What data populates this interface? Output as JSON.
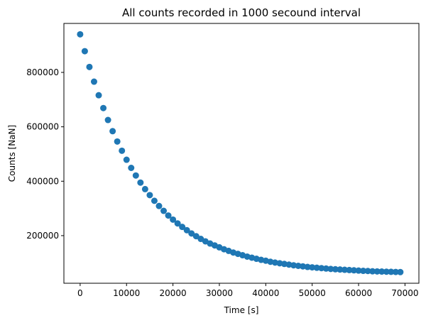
{
  "chart_data": {
    "type": "scatter",
    "title": "All counts recorded in 1000 secound interval",
    "xlabel": "Time [s]",
    "ylabel": "Counts [NaN]",
    "xlim": [
      -3500,
      73000
    ],
    "ylim": [
      25000,
      980000
    ],
    "xticks": [
      0,
      10000,
      20000,
      30000,
      40000,
      50000,
      60000,
      70000
    ],
    "xtick_labels": [
      "0",
      "10000",
      "20000",
      "30000",
      "40000",
      "50000",
      "60000",
      "70000"
    ],
    "yticks": [
      200000,
      400000,
      600000,
      800000
    ],
    "ytick_labels": [
      "200000",
      "400000",
      "600000",
      "800000"
    ],
    "grid": false,
    "legend": "none",
    "marker_color": "#1f77b4",
    "x": [
      0,
      1000,
      2000,
      3000,
      4000,
      5000,
      6000,
      7000,
      8000,
      9000,
      10000,
      11000,
      12000,
      13000,
      14000,
      15000,
      16000,
      17000,
      18000,
      19000,
      20000,
      21000,
      22000,
      23000,
      24000,
      25000,
      26000,
      27000,
      28000,
      29000,
      30000,
      31000,
      32000,
      33000,
      34000,
      35000,
      36000,
      37000,
      38000,
      39000,
      40000,
      41000,
      42000,
      43000,
      44000,
      45000,
      46000,
      47000,
      48000,
      49000,
      50000,
      51000,
      52000,
      53000,
      54000,
      55000,
      56000,
      57000,
      58000,
      59000,
      60000,
      61000,
      62000,
      63000,
      64000,
      65000,
      66000,
      67000,
      68000,
      69000
    ],
    "y": [
      940000,
      878000,
      820000,
      766000,
      716000,
      669000,
      625000,
      584000,
      546000,
      512000,
      479000,
      449000,
      421000,
      395000,
      371000,
      349000,
      328000,
      309000,
      291000,
      274000,
      259000,
      245000,
      232000,
      220000,
      208000,
      198000,
      188000,
      179000,
      171000,
      164000,
      157000,
      150000,
      144000,
      138000,
      133000,
      128000,
      123000,
      119000,
      115000,
      111000,
      108000,
      104000,
      101000,
      98500,
      96000,
      93500,
      91000,
      89000,
      87000,
      85000,
      83500,
      82000,
      80500,
      79000,
      77500,
      76500,
      75500,
      74500,
      73500,
      72500,
      71500,
      70500,
      70000,
      69000,
      68500,
      68000,
      67500,
      67000,
      66500,
      66000
    ]
  }
}
